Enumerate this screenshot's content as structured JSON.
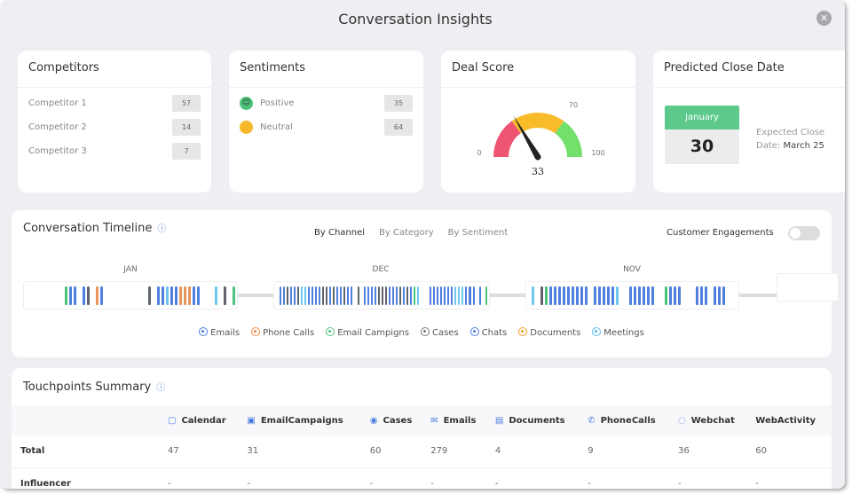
{
  "title": "Conversation Insights",
  "competitors": {
    "title": "Competitors",
    "items": [
      {
        "label": "Competitor 1",
        "value": "57"
      },
      {
        "label": "Competitor 2",
        "value": "14"
      },
      {
        "label": "Competitor 3",
        "value": "7"
      }
    ]
  },
  "sentiments": {
    "title": "Sentiments",
    "items": [
      {
        "label": "Positive",
        "value": "35",
        "icon": "smile-face-icon",
        "color": "#4cc27a"
      },
      {
        "label": "Neutral",
        "value": "64",
        "icon": "neutral-face-icon",
        "color": "#f6b72a"
      }
    ]
  },
  "deal_score": {
    "title": "Deal Score",
    "value": 33,
    "min_label": "0",
    "mid_label": "70",
    "max_label": "100",
    "value_label": "33",
    "bands": [
      {
        "to": 30,
        "color": "#ef5473"
      },
      {
        "to": 70,
        "color": "#f8bb2a"
      },
      {
        "to": 100,
        "color": "#72e06a"
      }
    ]
  },
  "close_date": {
    "title": "Predicted Close Date",
    "month": "January",
    "day": "30",
    "expected_label": "Expected Close",
    "date_prefix": "Date:",
    "date_value": "March 25"
  },
  "timeline": {
    "title": "Conversation Timeline",
    "tabs": [
      "By Channel",
      "By Category",
      "By Sentiment"
    ],
    "engagements_label": "Customer Engagements",
    "engagements_on": false,
    "months": [
      {
        "label": "JAN",
        "bars": "________gbb_bk_ob__________k_bblbbooobb___l_k_g"
      },
      {
        "label": "DEC",
        "bars": "bbkbbkllbbbbkkbkbbkbb_k_bbbbkkkbbbkbkbgl___bbbbbbblllbbb_b_g"
      },
      {
        "label": "NOV",
        "bars": "l_kgbbbbbbbbb_bbbbbl__bbbbbb__gbbb___bbb_bbb"
      }
    ],
    "legend": [
      {
        "label": "Emails",
        "color": "#4a7de0"
      },
      {
        "label": "Phone Calls",
        "color": "#f08a40"
      },
      {
        "label": "Email Campigns",
        "color": "#4cc27a"
      },
      {
        "label": "Cases",
        "color": "#777"
      },
      {
        "label": "Chats",
        "color": "#4a7de0"
      },
      {
        "label": "Documents",
        "color": "#f39c25"
      },
      {
        "label": "Meetings",
        "color": "#5ab8f0"
      }
    ]
  },
  "touchpoints": {
    "title": "Touchpoints Summary",
    "columns": [
      {
        "label": "Calendar",
        "icon": "calendar-icon"
      },
      {
        "label": "EmailCampaigns",
        "icon": "email-campaign-icon"
      },
      {
        "label": "Cases",
        "icon": "cases-icon"
      },
      {
        "label": "Emails",
        "icon": "envelope-icon"
      },
      {
        "label": "Documents",
        "icon": "document-icon"
      },
      {
        "label": "PhoneCalls",
        "icon": "phone-icon"
      },
      {
        "label": "Webchat",
        "icon": "chat-icon"
      },
      {
        "label": "WebActivity",
        "icon": ""
      }
    ],
    "rows": [
      {
        "label": "Total",
        "values": [
          "47",
          "31",
          "60",
          "279",
          "4",
          "9",
          "36",
          "60"
        ]
      },
      {
        "label": "Influencer",
        "values": [
          "-",
          "-",
          "-",
          "-",
          "-",
          "-",
          "-",
          "-"
        ]
      }
    ]
  }
}
